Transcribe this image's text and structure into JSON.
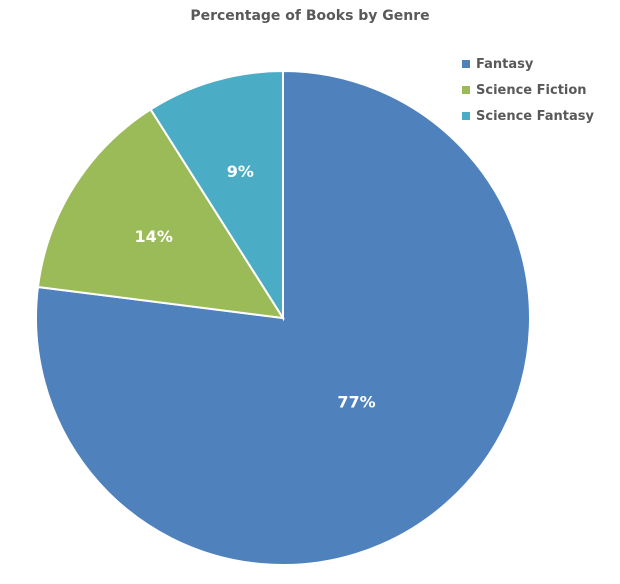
{
  "chart_data": {
    "type": "pie",
    "title": "Percentage of Books by Genre",
    "categories": [
      "Fantasy",
      "Science Fiction",
      "Science Fantasy"
    ],
    "values": [
      77,
      14,
      9
    ],
    "labels": [
      "77%",
      "14%",
      "9%"
    ],
    "colors": [
      "#4F81BD",
      "#9BBB59",
      "#4BACC6"
    ],
    "start_angle_deg": 0,
    "direction": "clockwise",
    "legend_position": "top-right",
    "data_labels": "inside"
  },
  "title": "Percentage of Books by Genre",
  "legend": [
    {
      "label": "Fantasy",
      "color": "#4F81BD"
    },
    {
      "label": "Science Fiction",
      "color": "#9BBB59"
    },
    {
      "label": "Science Fantasy",
      "color": "#4BACC6"
    }
  ]
}
